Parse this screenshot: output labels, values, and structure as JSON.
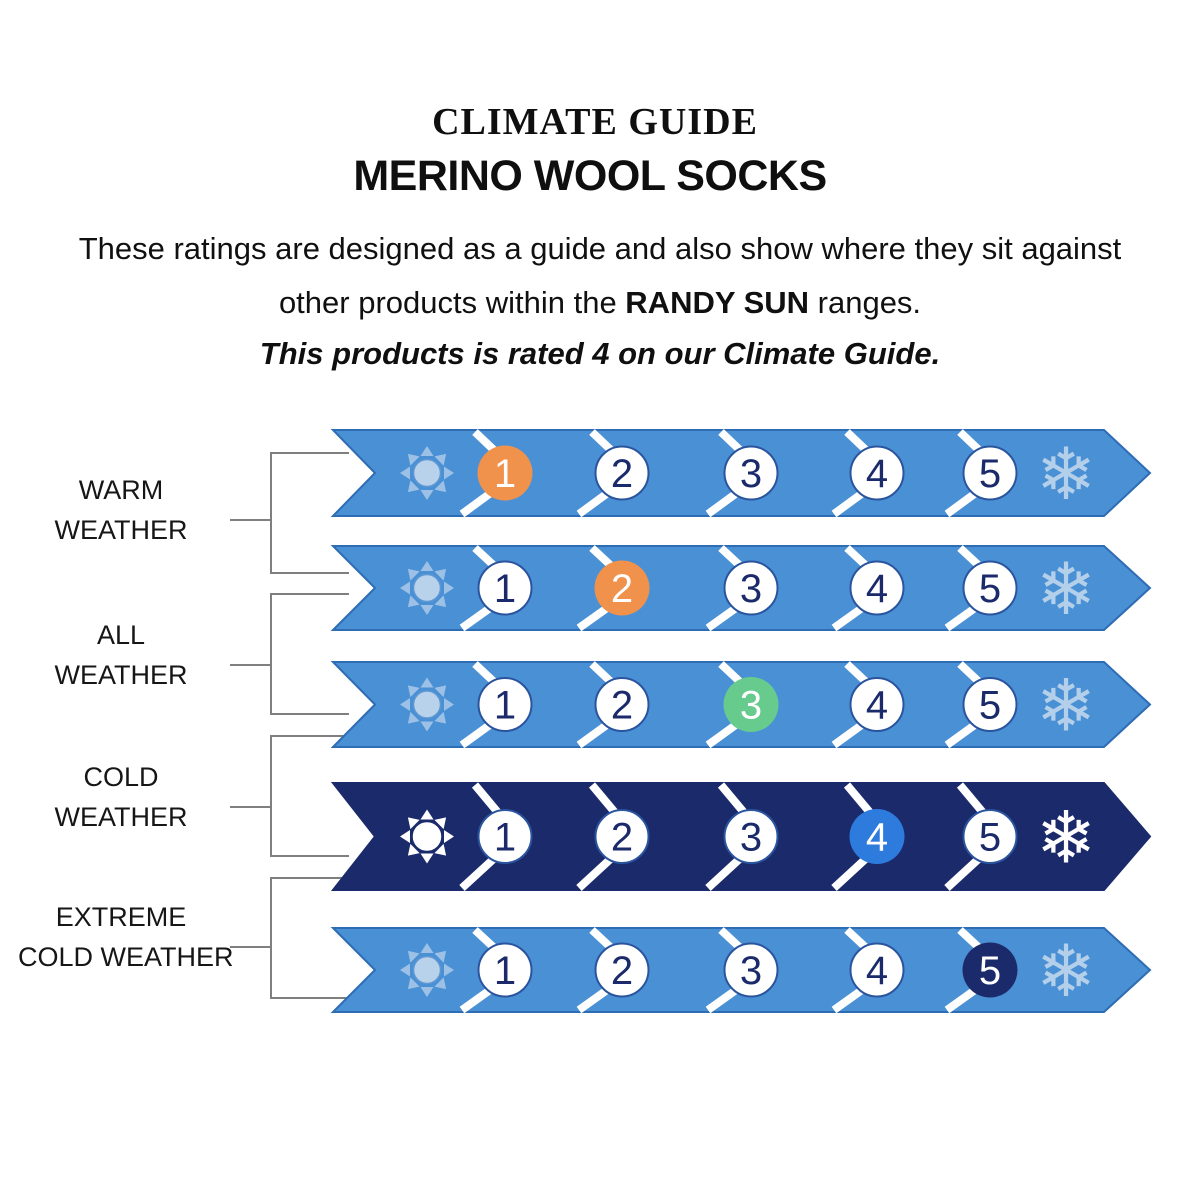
{
  "header": {
    "eyebrow": "CLIMATE GUIDE",
    "title": "MERINO WOOL SOCKS",
    "intro_line1": "These ratings are designed as a guide and also show where they sit against",
    "intro_line2_pre": "other products within the ",
    "intro_brand": "RANDY SUN",
    "intro_line2_post": " ranges.",
    "rating_note": "This products is rated 4 on our Climate Guide.",
    "product_rating": "4"
  },
  "climate_guide": {
    "scale": [
      "1",
      "2",
      "3",
      "4",
      "5"
    ],
    "left_icon": "sun-icon",
    "right_icon": "snowflake-icon",
    "snowflake_glyph": "❄",
    "groups": [
      {
        "id": "warm-weather",
        "lines": [
          "WARM",
          "WEATHER"
        ]
      },
      {
        "id": "all-weather",
        "lines": [
          "ALL",
          "WEATHER"
        ]
      },
      {
        "id": "cold-weather",
        "lines": [
          "COLD",
          "WEATHER"
        ]
      },
      {
        "id": "extreme-cold-weather",
        "lines": [
          "EXTREME",
          "COLD WEATHER"
        ]
      }
    ],
    "rows": [
      {
        "name": "rating-1-row",
        "theme": "light",
        "highlight": 1,
        "highlight_color": "#F0914C"
      },
      {
        "name": "rating-2-row",
        "theme": "light",
        "highlight": 2,
        "highlight_color": "#F0914C"
      },
      {
        "name": "rating-3-row",
        "theme": "light",
        "highlight": 3,
        "highlight_color": "#68CB8E"
      },
      {
        "name": "rating-4-row",
        "theme": "dark",
        "highlight": 4,
        "highlight_color": "#2E7BDE"
      },
      {
        "name": "rating-5-row",
        "theme": "light",
        "highlight": 5,
        "highlight_color": "#1B2A6B"
      }
    ],
    "colors": {
      "row_fill_light": "#4A90D4",
      "row_stroke_light": "#2E6CB4",
      "row_fill_dark": "#1B2A6B",
      "number_navy": "#1B2A6B",
      "circle_stroke": "#2A549E",
      "separator_white": "#FFFFFF",
      "sun_ray_light": "#9CC0E6",
      "sun_core_light": "#B9D2EC",
      "sun_stroke_light": "#5F97D2",
      "icon_white": "#FFFFFF",
      "snowflake_light": "#B3CFEA",
      "bracket_gray": "#7F7F7F"
    }
  }
}
